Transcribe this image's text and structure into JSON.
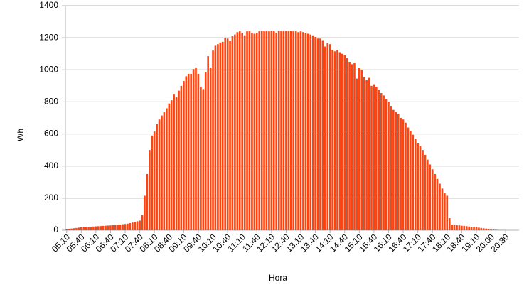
{
  "chart_data": {
    "type": "bar",
    "y_label": "Wh",
    "x_label": "Hora",
    "color": "#ff420e",
    "grid": true,
    "ylim": [
      0,
      1400
    ],
    "yticks": [
      0,
      200,
      400,
      600,
      800,
      1000,
      1200,
      1400
    ],
    "categories": [
      "05:10",
      null,
      null,
      null,
      null,
      null,
      "05:40",
      null,
      null,
      null,
      null,
      null,
      "06:10",
      null,
      null,
      null,
      null,
      null,
      "06:40",
      null,
      null,
      null,
      null,
      null,
      "07:10",
      null,
      null,
      null,
      null,
      null,
      "07:40",
      null,
      null,
      null,
      null,
      null,
      "08:10",
      null,
      null,
      null,
      null,
      null,
      "08:40",
      null,
      null,
      null,
      null,
      null,
      "09:10",
      null,
      null,
      null,
      null,
      null,
      "09:40",
      null,
      null,
      null,
      null,
      null,
      "10:10",
      null,
      null,
      null,
      null,
      null,
      "10:40",
      null,
      null,
      null,
      null,
      null,
      "11:10",
      null,
      null,
      null,
      null,
      null,
      "11:40",
      null,
      null,
      null,
      null,
      null,
      "12:10",
      null,
      null,
      null,
      null,
      null,
      "12:40",
      null,
      null,
      null,
      null,
      null,
      "13:10",
      null,
      null,
      null,
      null,
      null,
      "13:40",
      null,
      null,
      null,
      null,
      null,
      "14:10",
      null,
      null,
      null,
      null,
      null,
      "14:40",
      null,
      null,
      null,
      null,
      null,
      "15:10",
      null,
      null,
      null,
      null,
      null,
      "15:40",
      null,
      null,
      null,
      null,
      null,
      "16:10",
      null,
      null,
      null,
      null,
      null,
      "16:40",
      null,
      null,
      null,
      null,
      null,
      "17:10",
      null,
      null,
      null,
      null,
      null,
      "17:40",
      null,
      null,
      null,
      null,
      null,
      "18:10",
      null,
      null,
      null,
      null,
      null,
      "18:40",
      null,
      null,
      null,
      null,
      null,
      "19:10",
      null,
      null,
      null,
      null,
      null,
      "20:00",
      null,
      null,
      null,
      null,
      null,
      "20:30",
      null,
      null,
      null,
      null,
      null
    ],
    "values": [
      5,
      8,
      10,
      12,
      14,
      16,
      18,
      19,
      20,
      21,
      22,
      23,
      24,
      25,
      26,
      27,
      28,
      29,
      30,
      31,
      32,
      34,
      35,
      37,
      39,
      41,
      44,
      48,
      52,
      56,
      60,
      95,
      215,
      350,
      500,
      590,
      615,
      660,
      690,
      715,
      735,
      760,
      790,
      810,
      850,
      830,
      870,
      900,
      930,
      960,
      975,
      975,
      1005,
      1015,
      975,
      895,
      880,
      985,
      1085,
      1015,
      1120,
      1150,
      1160,
      1170,
      1175,
      1200,
      1195,
      1180,
      1210,
      1220,
      1235,
      1240,
      1230,
      1215,
      1240,
      1240,
      1230,
      1225,
      1230,
      1240,
      1245,
      1240,
      1245,
      1240,
      1245,
      1240,
      1230,
      1245,
      1240,
      1245,
      1245,
      1240,
      1245,
      1240,
      1240,
      1235,
      1240,
      1235,
      1230,
      1225,
      1220,
      1215,
      1205,
      1195,
      1195,
      1185,
      1145,
      1165,
      1160,
      1125,
      1115,
      1125,
      1110,
      1100,
      1090,
      1075,
      1050,
      1035,
      1045,
      945,
      1010,
      1000,
      955,
      935,
      950,
      900,
      910,
      895,
      875,
      855,
      840,
      815,
      800,
      775,
      750,
      740,
      725,
      700,
      690,
      670,
      640,
      620,
      595,
      570,
      545,
      525,
      500,
      470,
      440,
      410,
      380,
      350,
      320,
      290,
      260,
      230,
      215,
      75,
      35,
      33,
      31,
      30,
      28,
      27,
      25,
      23,
      22,
      20,
      18,
      16,
      14,
      12,
      10,
      8,
      6,
      4,
      3,
      2,
      1,
      1,
      1,
      0,
      0,
      0,
      0,
      0
    ]
  }
}
